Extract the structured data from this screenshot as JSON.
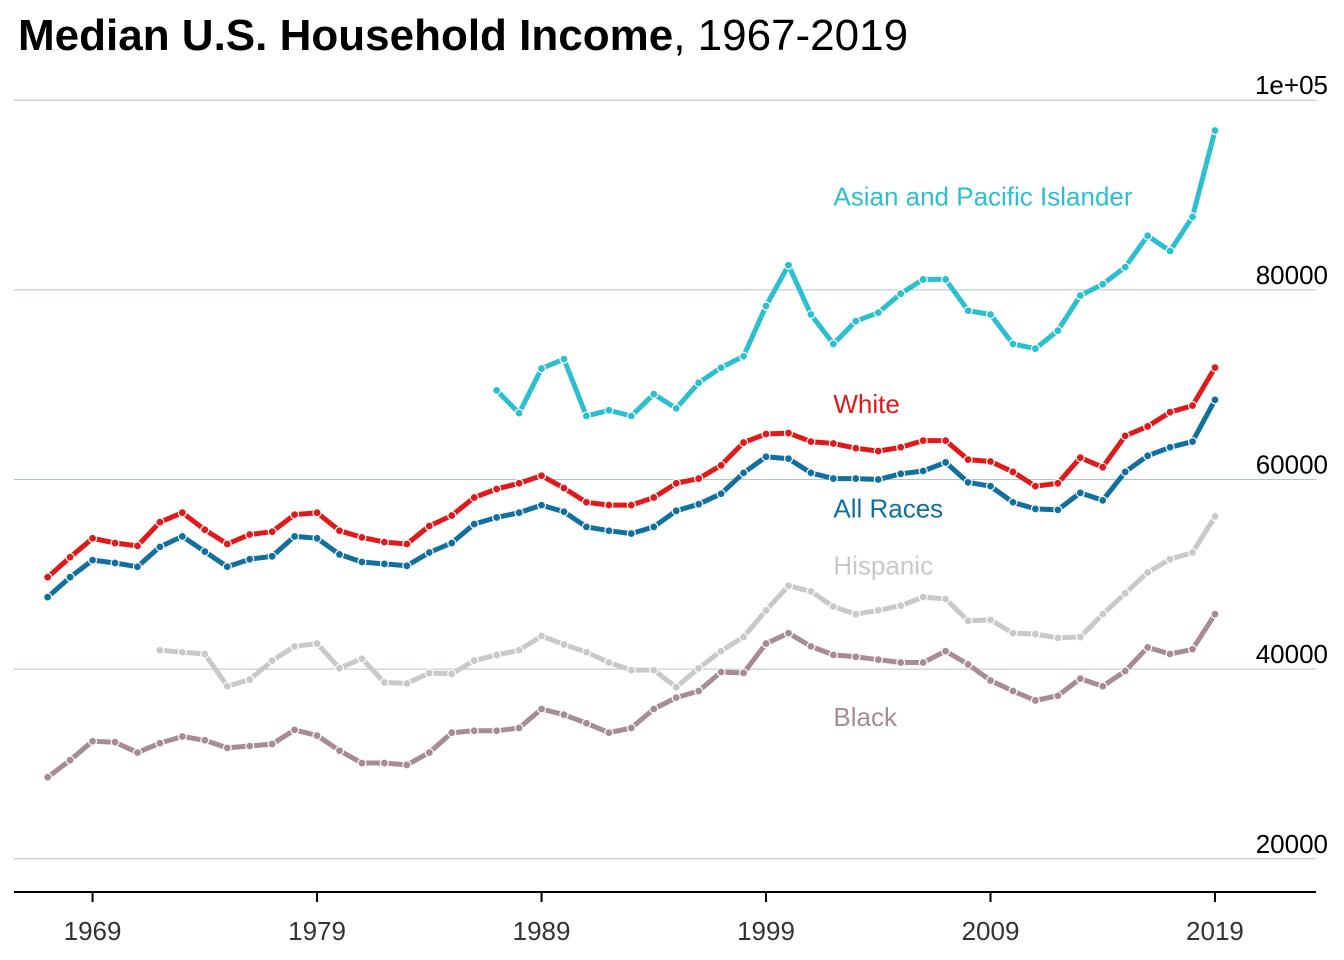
{
  "chart_data": {
    "type": "line",
    "title": "Median U.S. Household Income",
    "subtitle": "1967-2019",
    "xlabel": "",
    "ylabel": "",
    "xlim": [
      1965.5,
      2023.5
    ],
    "ylim": [
      16500,
      101500
    ],
    "x_ticks": [
      1969,
      1979,
      1989,
      1999,
      2009,
      2019
    ],
    "y_ticks": [
      20000,
      40000,
      60000,
      80000,
      100000
    ],
    "y_tick_labels": [
      "20000",
      "40000",
      "60000",
      "80000",
      "1e+05"
    ],
    "grid": "horizontal",
    "legend": "direct labels",
    "series": [
      {
        "name": "Asian and Pacific Islander",
        "color": "#2cbfd0",
        "x": [
          1987,
          1988,
          1989,
          1990,
          1991,
          1992,
          1993,
          1994,
          1995,
          1996,
          1997,
          1998,
          1999,
          2000,
          2001,
          2002,
          2003,
          2004,
          2005,
          2006,
          2007,
          2008,
          2009,
          2010,
          2011,
          2012,
          2013,
          2014,
          2015,
          2016,
          2017,
          2018,
          2019
        ],
        "values": [
          69400,
          67000,
          71700,
          72700,
          66700,
          67300,
          66700,
          69000,
          67500,
          70200,
          71800,
          73000,
          78300,
          82600,
          77400,
          74300,
          76700,
          77600,
          79600,
          81100,
          81100,
          77800,
          77400,
          74300,
          73800,
          75700,
          79400,
          80600,
          82400,
          85700,
          84100,
          87700,
          96800
        ]
      },
      {
        "name": "White",
        "color": "#e01a1a",
        "x": [
          1967,
          1968,
          1969,
          1970,
          1971,
          1972,
          1973,
          1974,
          1975,
          1976,
          1977,
          1978,
          1979,
          1980,
          1981,
          1982,
          1983,
          1984,
          1985,
          1986,
          1987,
          1988,
          1989,
          1990,
          1991,
          1992,
          1993,
          1994,
          1995,
          1996,
          1997,
          1998,
          1999,
          2000,
          2001,
          2002,
          2003,
          2004,
          2005,
          2006,
          2007,
          2008,
          2009,
          2010,
          2011,
          2012,
          2013,
          2014,
          2015,
          2016,
          2017,
          2018,
          2019
        ],
        "values": [
          49700,
          51800,
          53800,
          53300,
          53000,
          55500,
          56500,
          54700,
          53200,
          54200,
          54500,
          56300,
          56500,
          54600,
          53900,
          53400,
          53200,
          55100,
          56200,
          58100,
          59000,
          59600,
          60400,
          59100,
          57600,
          57300,
          57300,
          58100,
          59600,
          60100,
          61500,
          63900,
          64800,
          64900,
          64000,
          63800,
          63300,
          63000,
          63400,
          64100,
          64100,
          62100,
          61900,
          60800,
          59300,
          59600,
          62300,
          61300,
          64600,
          65600,
          67100,
          67800,
          71800
        ]
      },
      {
        "name": "All Races",
        "color": "#1270a0",
        "x": [
          1967,
          1968,
          1969,
          1970,
          1971,
          1972,
          1973,
          1974,
          1975,
          1976,
          1977,
          1978,
          1979,
          1980,
          1981,
          1982,
          1983,
          1984,
          1985,
          1986,
          1987,
          1988,
          1989,
          1990,
          1991,
          1992,
          1993,
          1994,
          1995,
          1996,
          1997,
          1998,
          1999,
          2000,
          2001,
          2002,
          2003,
          2004,
          2005,
          2006,
          2007,
          2008,
          2009,
          2010,
          2011,
          2012,
          2013,
          2014,
          2015,
          2016,
          2017,
          2018,
          2019
        ],
        "values": [
          47600,
          49700,
          51500,
          51200,
          50800,
          52900,
          54000,
          52400,
          50800,
          51600,
          51900,
          54000,
          53800,
          52100,
          51300,
          51100,
          50900,
          52300,
          53300,
          55300,
          56000,
          56500,
          57300,
          56600,
          55000,
          54600,
          54300,
          55000,
          56700,
          57400,
          58500,
          60700,
          62400,
          62200,
          60700,
          60100,
          60100,
          60000,
          60600,
          60900,
          61800,
          59700,
          59300,
          57600,
          56900,
          56800,
          58600,
          57800,
          60800,
          62500,
          63400,
          64000,
          68400
        ]
      },
      {
        "name": "Hispanic",
        "color": "#c9c9c9",
        "x": [
          1972,
          1973,
          1974,
          1975,
          1976,
          1977,
          1978,
          1979,
          1980,
          1981,
          1982,
          1983,
          1984,
          1985,
          1986,
          1987,
          1988,
          1989,
          1990,
          1991,
          1992,
          1993,
          1994,
          1995,
          1996,
          1997,
          1998,
          1999,
          2000,
          2001,
          2002,
          2003,
          2004,
          2005,
          2006,
          2007,
          2008,
          2009,
          2010,
          2011,
          2012,
          2013,
          2014,
          2015,
          2016,
          2017,
          2018,
          2019
        ],
        "values": [
          42000,
          41800,
          41600,
          38200,
          38900,
          40900,
          42400,
          42700,
          40100,
          41100,
          38600,
          38500,
          39600,
          39500,
          40900,
          41500,
          42000,
          43500,
          42600,
          41800,
          40700,
          39900,
          39900,
          38100,
          40100,
          41900,
          43400,
          46200,
          48800,
          48200,
          46600,
          45800,
          46200,
          46700,
          47600,
          47400,
          45100,
          45200,
          43800,
          43700,
          43300,
          43400,
          45800,
          48000,
          50200,
          51600,
          52300,
          56100
        ]
      },
      {
        "name": "Black",
        "color": "#a78b96",
        "x": [
          1967,
          1968,
          1969,
          1970,
          1971,
          1972,
          1973,
          1974,
          1975,
          1976,
          1977,
          1978,
          1979,
          1980,
          1981,
          1982,
          1983,
          1984,
          1985,
          1986,
          1987,
          1988,
          1989,
          1990,
          1991,
          1992,
          1993,
          1994,
          1995,
          1996,
          1997,
          1998,
          1999,
          2000,
          2001,
          2002,
          2003,
          2004,
          2005,
          2006,
          2007,
          2008,
          2009,
          2010,
          2011,
          2012,
          2013,
          2014,
          2015,
          2016,
          2017,
          2018,
          2019
        ],
        "values": [
          28600,
          30400,
          32400,
          32300,
          31200,
          32200,
          32900,
          32500,
          31700,
          31900,
          32100,
          33600,
          33000,
          31400,
          30100,
          30100,
          29900,
          31200,
          33300,
          33500,
          33500,
          33800,
          35800,
          35200,
          34300,
          33300,
          33800,
          35800,
          37000,
          37700,
          39700,
          39600,
          42700,
          43800,
          42400,
          41500,
          41300,
          41000,
          40700,
          40700,
          41900,
          40500,
          38800,
          37700,
          36700,
          37200,
          39000,
          38200,
          39800,
          42300,
          41600,
          42100,
          45800
        ]
      }
    ],
    "annotations": [
      {
        "text": "Asian and Pacific Islander",
        "series": "Asian and Pacific Islander",
        "x": 2002,
        "y": 88900
      },
      {
        "text": "White",
        "series": "White",
        "x": 2002,
        "y": 67000
      },
      {
        "text": "All Races",
        "series": "All Races",
        "x": 2002,
        "y": 56000
      },
      {
        "text": "Hispanic",
        "series": "Hispanic",
        "x": 2002,
        "y": 50000
      },
      {
        "text": "Black",
        "series": "Black",
        "x": 2002,
        "y": 34000
      }
    ]
  }
}
